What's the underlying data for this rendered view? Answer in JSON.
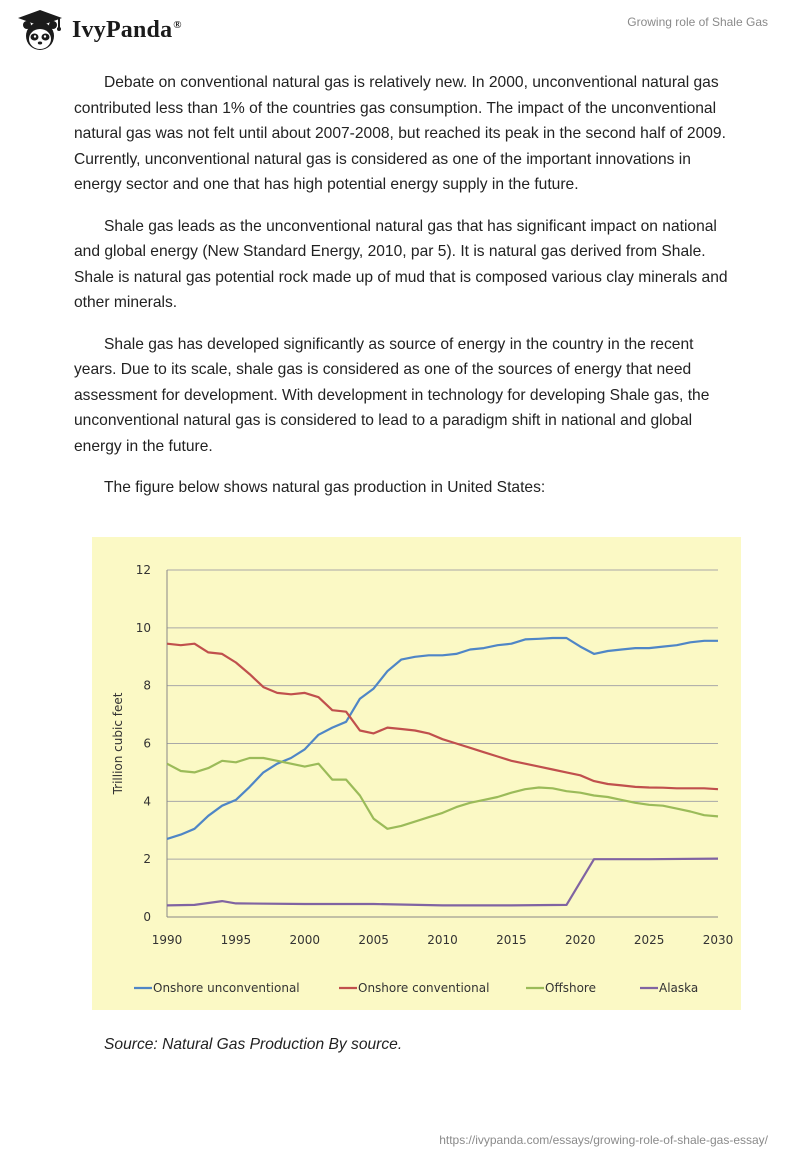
{
  "header": {
    "brand": "IvyPanda",
    "registered": "®",
    "doc_title": "Growing role of Shale Gas"
  },
  "body": {
    "paragraphs": [
      "Debate on conventional natural gas is relatively new. In 2000, unconventional natural gas contributed less than 1% of the countries gas consumption. The impact of the unconventional natural gas was not felt until about 2007-2008, but reached its peak in the second half of 2009. Currently, unconventional natural gas is considered as one of the important innovations in energy sector and one that has high potential energy supply in the future.",
      "Shale gas leads as the unconventional natural gas that has significant impact on national and global energy (New Standard Energy, 2010, par 5). It is natural gas derived from Shale. Shale is natural gas potential rock made up of mud that is composed various clay minerals and other minerals.",
      "Shale gas has developed significantly as source of energy in the country in the recent years. Due to its scale, shale gas is considered as one of the sources of energy that need assessment for development. With development in technology for developing Shale gas, the unconventional natural gas is considered to lead to a paradigm shift in national and global energy in the future.",
      "The figure below shows natural gas production in United States:"
    ],
    "caption": "Source: Natural Gas Production By source."
  },
  "footer": {
    "url": "https://ivypanda.com/essays/growing-role-of-shale-gas-essay/"
  },
  "chart_data": {
    "type": "line",
    "title": "",
    "xlabel": "",
    "ylabel": "Trillion cubic feet",
    "xlim": [
      1990,
      2030
    ],
    "ylim": [
      0,
      12
    ],
    "x_ticks": [
      "1990",
      "1995",
      "2000",
      "2005",
      "2010",
      "2015",
      "2020",
      "2025",
      "2030"
    ],
    "y_ticks": [
      "0",
      "2",
      "4",
      "6",
      "8",
      "10",
      "12"
    ],
    "grid": true,
    "legend_position": "bottom",
    "background": "#fbf9c5",
    "series": [
      {
        "name": "Onshore unconventional",
        "color": "#4f86c6",
        "x": [
          1990,
          1991,
          1992,
          1993,
          1994,
          1995,
          1996,
          1997,
          1998,
          1999,
          2000,
          2001,
          2002,
          2003,
          2004,
          2005,
          2006,
          2007,
          2008,
          2009,
          2010,
          2011,
          2012,
          2013,
          2014,
          2015,
          2016,
          2017,
          2018,
          2019,
          2020,
          2021,
          2022,
          2023,
          2024,
          2025,
          2026,
          2027,
          2028,
          2029,
          2030
        ],
        "y": [
          2.7,
          2.85,
          3.05,
          3.5,
          3.85,
          4.05,
          4.5,
          5.0,
          5.3,
          5.5,
          5.8,
          6.3,
          6.55,
          6.75,
          7.55,
          7.9,
          8.5,
          8.9,
          9.0,
          9.05,
          9.05,
          9.1,
          9.25,
          9.3,
          9.4,
          9.45,
          9.6,
          9.62,
          9.65,
          9.65,
          9.35,
          9.1,
          9.2,
          9.25,
          9.3,
          9.3,
          9.35,
          9.4,
          9.5,
          9.55,
          9.55
        ]
      },
      {
        "name": "Onshore conventional",
        "color": "#c0504d",
        "x": [
          1990,
          1991,
          1992,
          1993,
          1994,
          1995,
          1996,
          1997,
          1998,
          1999,
          2000,
          2001,
          2002,
          2003,
          2004,
          2005,
          2006,
          2007,
          2008,
          2009,
          2010,
          2011,
          2012,
          2013,
          2014,
          2015,
          2016,
          2017,
          2018,
          2019,
          2020,
          2021,
          2022,
          2023,
          2024,
          2025,
          2026,
          2027,
          2028,
          2029,
          2030
        ],
        "y": [
          9.45,
          9.4,
          9.45,
          9.15,
          9.1,
          8.8,
          8.4,
          7.95,
          7.75,
          7.7,
          7.75,
          7.6,
          7.15,
          7.1,
          6.45,
          6.35,
          6.55,
          6.5,
          6.45,
          6.35,
          6.15,
          6.0,
          5.85,
          5.7,
          5.55,
          5.4,
          5.3,
          5.2,
          5.1,
          5.0,
          4.9,
          4.7,
          4.6,
          4.55,
          4.5,
          4.48,
          4.47,
          4.45,
          4.45,
          4.45,
          4.42
        ]
      },
      {
        "name": "Offshore",
        "color": "#9bbb59",
        "x": [
          1990,
          1991,
          1992,
          1993,
          1994,
          1995,
          1996,
          1997,
          1998,
          1999,
          2000,
          2001,
          2002,
          2003,
          2004,
          2005,
          2006,
          2007,
          2008,
          2009,
          2010,
          2011,
          2012,
          2013,
          2014,
          2015,
          2016,
          2017,
          2018,
          2019,
          2020,
          2021,
          2022,
          2023,
          2024,
          2025,
          2026,
          2027,
          2028,
          2029,
          2030
        ],
        "y": [
          5.3,
          5.05,
          5.0,
          5.15,
          5.4,
          5.35,
          5.5,
          5.5,
          5.4,
          5.3,
          5.2,
          5.3,
          4.75,
          4.75,
          4.2,
          3.4,
          3.05,
          3.15,
          3.3,
          3.45,
          3.6,
          3.8,
          3.95,
          4.05,
          4.15,
          4.3,
          4.42,
          4.48,
          4.45,
          4.35,
          4.3,
          4.2,
          4.15,
          4.05,
          3.95,
          3.88,
          3.85,
          3.75,
          3.65,
          3.52,
          3.48
        ]
      },
      {
        "name": "Alaska",
        "color": "#8064a2",
        "x": [
          1990,
          1992,
          1994,
          1995,
          2000,
          2005,
          2010,
          2015,
          2019,
          2021,
          2025,
          2030
        ],
        "y": [
          0.4,
          0.42,
          0.55,
          0.47,
          0.45,
          0.45,
          0.4,
          0.4,
          0.42,
          2.0,
          2.0,
          2.02
        ]
      }
    ]
  }
}
